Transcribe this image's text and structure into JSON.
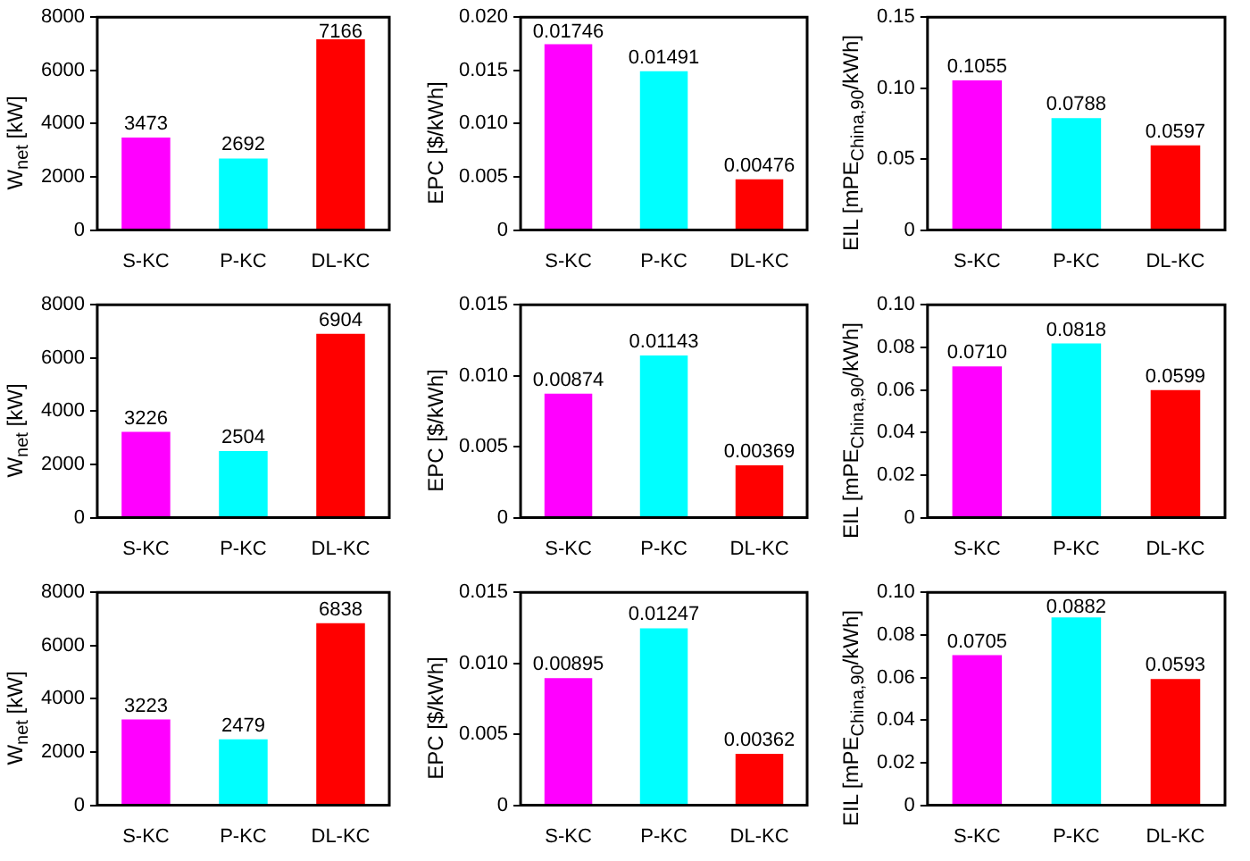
{
  "chart_data": [
    {
      "type": "bar",
      "ylabel": "W$_{net}$ [kW]",
      "categories": [
        "S-KC",
        "P-KC",
        "DL-KC"
      ],
      "values": [
        3473,
        2692,
        7166
      ],
      "colors": [
        "#ff00ff",
        "#00ffff",
        "#ff0000"
      ],
      "value_labels": [
        "3473",
        "2692",
        "7166"
      ],
      "ylim": [
        0,
        8000
      ],
      "yticks": [
        0,
        2000,
        4000,
        6000,
        8000
      ],
      "grid": false
    },
    {
      "type": "bar",
      "ylabel": "EPC [$/kWh]",
      "categories": [
        "S-KC",
        "P-KC",
        "DL-KC"
      ],
      "values": [
        0.01746,
        0.01491,
        0.00476
      ],
      "colors": [
        "#ff00ff",
        "#00ffff",
        "#ff0000"
      ],
      "value_labels": [
        "0.01746",
        "0.01491",
        "0.00476"
      ],
      "ylim": [
        0,
        0.02
      ],
      "yticks": [
        0,
        {
          "value": 0.005,
          "label": "0.005"
        },
        {
          "value": 0.01,
          "label": "0.010"
        },
        {
          "value": 0.015,
          "label": "0.015"
        },
        {
          "value": 0.02,
          "label": "0.020"
        }
      ],
      "grid": false
    },
    {
      "type": "bar",
      "ylabel": "EIL [mPE$_{China,90}$/kWh]",
      "categories": [
        "S-KC",
        "P-KC",
        "DL-KC"
      ],
      "values": [
        0.1055,
        0.0788,
        0.0597
      ],
      "colors": [
        "#ff00ff",
        "#00ffff",
        "#ff0000"
      ],
      "value_labels": [
        "0.1055",
        "0.0788",
        "0.0597"
      ],
      "ylim": [
        0,
        0.15
      ],
      "yticks": [
        0,
        {
          "value": 0.05,
          "label": "0.05"
        },
        {
          "value": 0.1,
          "label": "0.10"
        },
        {
          "value": 0.15,
          "label": "0.15"
        }
      ],
      "grid": false
    },
    {
      "type": "bar",
      "ylabel": "W$_{net}$ [kW]",
      "categories": [
        "S-KC",
        "P-KC",
        "DL-KC"
      ],
      "values": [
        3226,
        2504,
        6904
      ],
      "colors": [
        "#ff00ff",
        "#00ffff",
        "#ff0000"
      ],
      "value_labels": [
        "3226",
        "2504",
        "6904"
      ],
      "ylim": [
        0,
        8000
      ],
      "yticks": [
        0,
        2000,
        4000,
        6000,
        8000
      ],
      "grid": false
    },
    {
      "type": "bar",
      "ylabel": "EPC [$/kWh]",
      "categories": [
        "S-KC",
        "P-KC",
        "DL-KC"
      ],
      "values": [
        0.00874,
        0.01143,
        0.00369
      ],
      "colors": [
        "#ff00ff",
        "#00ffff",
        "#ff0000"
      ],
      "value_labels": [
        "0.00874",
        "0.01143",
        "0.00369"
      ],
      "ylim": [
        0,
        0.015
      ],
      "yticks": [
        0,
        {
          "value": 0.005,
          "label": "0.005"
        },
        {
          "value": 0.01,
          "label": "0.010"
        },
        {
          "value": 0.015,
          "label": "0.015"
        }
      ],
      "grid": false
    },
    {
      "type": "bar",
      "ylabel": "EIL [mPE$_{China,90}$/kWh]",
      "categories": [
        "S-KC",
        "P-KC",
        "DL-KC"
      ],
      "values": [
        0.071,
        0.0818,
        0.0599
      ],
      "colors": [
        "#ff00ff",
        "#00ffff",
        "#ff0000"
      ],
      "value_labels": [
        "0.0710",
        "0.0818",
        "0.0599"
      ],
      "ylim": [
        0,
        0.1
      ],
      "yticks": [
        0,
        {
          "value": 0.02,
          "label": "0.02"
        },
        {
          "value": 0.04,
          "label": "0.04"
        },
        {
          "value": 0.06,
          "label": "0.06"
        },
        {
          "value": 0.08,
          "label": "0.08"
        },
        {
          "value": 0.1,
          "label": "0.10"
        }
      ],
      "grid": false
    },
    {
      "type": "bar",
      "ylabel": "W$_{net}$ [kW]",
      "categories": [
        "S-KC",
        "P-KC",
        "DL-KC"
      ],
      "values": [
        3223,
        2479,
        6838
      ],
      "colors": [
        "#ff00ff",
        "#00ffff",
        "#ff0000"
      ],
      "value_labels": [
        "3223",
        "2479",
        "6838"
      ],
      "ylim": [
        0,
        8000
      ],
      "yticks": [
        0,
        2000,
        4000,
        6000,
        8000
      ],
      "grid": false
    },
    {
      "type": "bar",
      "ylabel": "EPC [$/kWh]",
      "categories": [
        "S-KC",
        "P-KC",
        "DL-KC"
      ],
      "values": [
        0.00895,
        0.01247,
        0.00362
      ],
      "colors": [
        "#ff00ff",
        "#00ffff",
        "#ff0000"
      ],
      "value_labels": [
        "0.00895",
        "0.01247",
        "0.00362"
      ],
      "ylim": [
        0,
        0.015
      ],
      "yticks": [
        0,
        {
          "value": 0.005,
          "label": "0.005"
        },
        {
          "value": 0.01,
          "label": "0.010"
        },
        {
          "value": 0.015,
          "label": "0.015"
        }
      ],
      "grid": false
    },
    {
      "type": "bar",
      "ylabel": "EIL [mPE$_{China,90}$/kWh]",
      "categories": [
        "S-KC",
        "P-KC",
        "DL-KC"
      ],
      "values": [
        0.0705,
        0.0882,
        0.0593
      ],
      "colors": [
        "#ff00ff",
        "#00ffff",
        "#ff0000"
      ],
      "value_labels": [
        "0.0705",
        "0.0882",
        "0.0593"
      ],
      "ylim": [
        0,
        0.1
      ],
      "yticks": [
        0,
        {
          "value": 0.02,
          "label": "0.02"
        },
        {
          "value": 0.04,
          "label": "0.04"
        },
        {
          "value": 0.06,
          "label": "0.06"
        },
        {
          "value": 0.08,
          "label": "0.08"
        },
        {
          "value": 0.1,
          "label": "0.10"
        }
      ],
      "grid": false
    }
  ]
}
